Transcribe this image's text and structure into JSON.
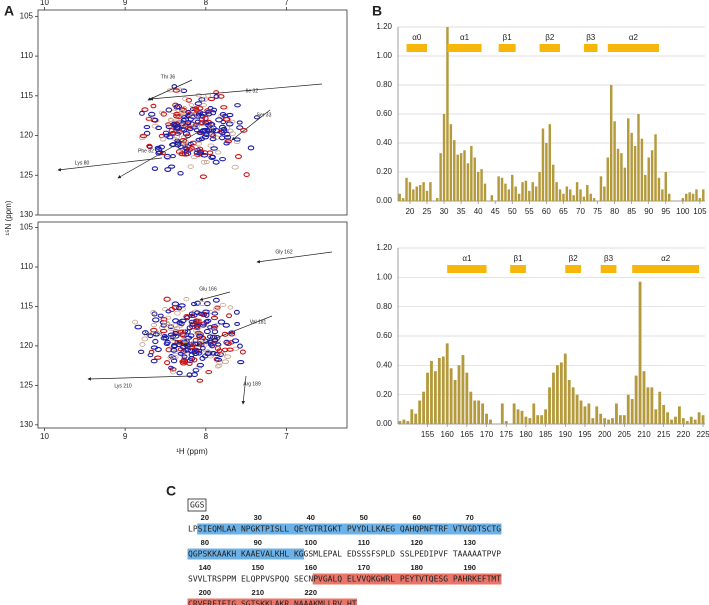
{
  "panel_labels": [
    "A",
    "B",
    "C"
  ],
  "chart_data": [
    {
      "type": "spectrum",
      "xlim": [
        10.08,
        6.25
      ],
      "xticks": [
        10,
        9,
        8,
        7
      ],
      "ylim": [
        104.2,
        130.0
      ],
      "yticks": [
        105,
        110,
        115,
        120,
        125,
        130
      ],
      "ylabel": "¹⁵N (ppm)",
      "annotations": [
        "Thr 36",
        "Ile 32",
        "Ser 33",
        "Phe 82",
        "Lys 80"
      ]
    },
    {
      "type": "spectrum",
      "xlim": [
        10.08,
        6.25
      ],
      "xticks": [
        10,
        9,
        8,
        7
      ],
      "ylim": [
        104.3,
        130.4
      ],
      "yticks": [
        105,
        110,
        115,
        120,
        125,
        130
      ],
      "xlabel": "¹H (ppm)",
      "annotations": [
        "Gly 162",
        "Glu 166",
        "Val 181",
        "Asn 159",
        "Lys 210",
        "Arg 189"
      ]
    },
    {
      "type": "bar",
      "color": "#b49a3c",
      "grid": true,
      "x": [
        17,
        18,
        19,
        20,
        21,
        22,
        23,
        24,
        25,
        26,
        27,
        28,
        29,
        30,
        31,
        32,
        33,
        34,
        35,
        36,
        37,
        38,
        39,
        40,
        41,
        42,
        43,
        44,
        45,
        46,
        47,
        48,
        49,
        50,
        51,
        52,
        53,
        54,
        55,
        56,
        57,
        58,
        59,
        60,
        61,
        62,
        63,
        64,
        65,
        66,
        67,
        68,
        69,
        70,
        71,
        72,
        73,
        74,
        75,
        76,
        77,
        78,
        79,
        80,
        81,
        82,
        83,
        84,
        85,
        86,
        87,
        88,
        89,
        90,
        91,
        92,
        93,
        94,
        95,
        96,
        97,
        98,
        99,
        100,
        101,
        102,
        103,
        104,
        105,
        106
      ],
      "values": [
        0.05,
        0.02,
        0.16,
        0.13,
        0.08,
        0.1,
        0.11,
        0.13,
        0.07,
        0.13,
        0.0,
        0.02,
        0.33,
        0.6,
        1.2,
        0.53,
        0.42,
        0.32,
        0.33,
        0.35,
        0.26,
        0.38,
        0.3,
        0.2,
        0.22,
        0.12,
        0.0,
        0.04,
        0.0,
        0.17,
        0.16,
        0.12,
        0.08,
        0.18,
        0.1,
        0.05,
        0.13,
        0.14,
        0.07,
        0.13,
        0.1,
        0.2,
        0.5,
        0.4,
        0.53,
        0.25,
        0.13,
        0.08,
        0.05,
        0.1,
        0.08,
        0.04,
        0.13,
        0.08,
        0.03,
        0.11,
        0.05,
        0.02,
        0.0,
        0.17,
        0.1,
        0.3,
        0.8,
        0.55,
        0.36,
        0.33,
        0.23,
        0.57,
        0.47,
        0.38,
        0.6,
        0.43,
        0.18,
        0.3,
        0.35,
        0.46,
        0.16,
        0.08,
        0.2,
        0.05,
        0.0,
        0.0,
        0.0,
        0.02,
        0.05,
        0.06,
        0.05,
        0.08,
        0.02,
        0.08
      ],
      "xlim": [
        16.5,
        106.5
      ],
      "xticks": [
        20,
        25,
        30,
        35,
        40,
        45,
        50,
        55,
        60,
        65,
        70,
        75,
        80,
        85,
        90,
        95,
        100,
        105
      ],
      "ylim": [
        0,
        1.2
      ],
      "yticks": [
        {
          "value": 0,
          "label": "0.00"
        },
        {
          "value": 0.2,
          "label": "0.20"
        },
        {
          "value": 0.4,
          "label": "0.40"
        },
        {
          "value": 0.6,
          "label": "0.60"
        },
        {
          "value": 0.8,
          "label": "0.80"
        },
        {
          "value": 1.0,
          "label": "1.00"
        },
        {
          "value": 1.2,
          "label": "1.20"
        }
      ],
      "elements": [
        {
          "label": "α0",
          "start": 19,
          "end": 25
        },
        {
          "label": "α1",
          "start": 31,
          "end": 41
        },
        {
          "label": "β1",
          "start": 46,
          "end": 51
        },
        {
          "label": "β2",
          "start": 58,
          "end": 64
        },
        {
          "label": "β3",
          "start": 71,
          "end": 75
        },
        {
          "label": "α2",
          "start": 78,
          "end": 93
        }
      ]
    },
    {
      "type": "bar",
      "color": "#b49a3c",
      "grid": true,
      "x": [
        148,
        149,
        150,
        151,
        152,
        153,
        154,
        155,
        156,
        157,
        158,
        159,
        160,
        161,
        162,
        163,
        164,
        165,
        166,
        167,
        168,
        169,
        170,
        171,
        172,
        173,
        174,
        175,
        176,
        177,
        178,
        179,
        180,
        181,
        182,
        183,
        184,
        185,
        186,
        187,
        188,
        189,
        190,
        191,
        192,
        193,
        194,
        195,
        196,
        197,
        198,
        199,
        200,
        201,
        202,
        203,
        204,
        205,
        206,
        207,
        208,
        209,
        210,
        211,
        212,
        213,
        214,
        215,
        216,
        217,
        218,
        219,
        220,
        221,
        222,
        223,
        224,
        225
      ],
      "values": [
        0.02,
        0.03,
        0.02,
        0.1,
        0.07,
        0.16,
        0.22,
        0.35,
        0.43,
        0.36,
        0.45,
        0.46,
        0.55,
        0.38,
        0.3,
        0.4,
        0.47,
        0.35,
        0.22,
        0.16,
        0.16,
        0.14,
        0.07,
        0.03,
        0.0,
        0.0,
        0.14,
        0.02,
        0.0,
        0.14,
        0.1,
        0.09,
        0.05,
        0.04,
        0.14,
        0.06,
        0.06,
        0.1,
        0.25,
        0.35,
        0.4,
        0.42,
        0.48,
        0.3,
        0.25,
        0.2,
        0.16,
        0.12,
        0.14,
        0.04,
        0.12,
        0.07,
        0.04,
        0.03,
        0.04,
        0.14,
        0.06,
        0.06,
        0.2,
        0.17,
        0.33,
        0.97,
        0.36,
        0.25,
        0.25,
        0.1,
        0.22,
        0.13,
        0.08,
        0.03,
        0.05,
        0.12,
        0.04,
        0.02,
        0.05,
        0.03,
        0.08,
        0.06
      ],
      "xlim": [
        147.5,
        225.5
      ],
      "xticks": [
        155,
        160,
        165,
        170,
        175,
        180,
        185,
        190,
        195,
        200,
        205,
        210,
        215,
        220,
        225
      ],
      "ylim": [
        0,
        1.2
      ],
      "yticks": [
        {
          "value": 0,
          "label": "0.00"
        },
        {
          "value": 0.2,
          "label": "0.20"
        },
        {
          "value": 0.4,
          "label": "0.40"
        },
        {
          "value": 0.6,
          "label": "0.60"
        },
        {
          "value": 0.8,
          "label": "0.80"
        },
        {
          "value": 1.0,
          "label": "1.00"
        },
        {
          "value": 1.2,
          "label": "1.20"
        }
      ],
      "elements": [
        {
          "label": "α1",
          "start": 160,
          "end": 170
        },
        {
          "label": "β1",
          "start": 176,
          "end": 180
        },
        {
          "label": "β2",
          "start": 190,
          "end": 194
        },
        {
          "label": "β3",
          "start": 199,
          "end": 203
        },
        {
          "label": "α2",
          "start": 207,
          "end": 224
        }
      ]
    }
  ],
  "sequence": {
    "tag": "GGS",
    "rows": [
      {
        "numbers": [
          20,
          30,
          40,
          50,
          60,
          70
        ],
        "segments": [
          {
            "text": "LP"
          },
          {
            "text": "SIEQMLAA NPGKTPISLL QEYGTRIGKT PVYDLLKAEG QAHQPNFTRF VTVGDTSCTG",
            "highlight": "#6cb2e8"
          }
        ]
      },
      {
        "numbers": [
          80,
          90,
          100,
          110,
          120,
          130
        ],
        "segments": [
          {
            "text": "QGPSKKAAKH KAAEVALKHL KG",
            "highlight": "#6cb2e8"
          },
          {
            "text": "GSMLEPAL EDSSSFSPLD SSLPEDIPVF TAAAAATPVP"
          }
        ]
      },
      {
        "numbers": [
          140,
          150,
          160,
          170,
          180,
          190
        ],
        "segments": [
          {
            "text": "SVVLTRSPPM ELQPPVSPQQ SECN"
          },
          {
            "text": "PVGALQ ELVVQKGWRL PEYTVTQESG PAHRKEFTMT",
            "highlight": "#ea7468"
          }
        ]
      },
      {
        "numbers": [
          200,
          210,
          220
        ],
        "segments": [
          {
            "text": "CRVERFIEIG SGTSKKLAKR NAAAKMLLRV HT",
            "highlight": "#ea7468"
          }
        ]
      }
    ]
  }
}
